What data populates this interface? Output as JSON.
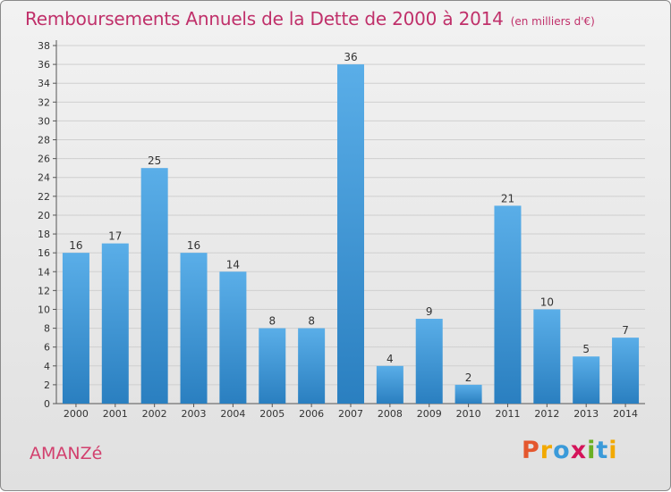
{
  "page": {
    "title": "Remboursements Annuels de la Dette de 2000 à 2014",
    "unit": "(en milliers d'€)",
    "commune": "AMANZé",
    "logo": "Proxiti"
  },
  "chart_data": {
    "type": "bar",
    "title": "Remboursements Annuels de la Dette de 2000 à 2014",
    "subtitle": "(en milliers d'€)",
    "categories": [
      "2000",
      "2001",
      "2002",
      "2003",
      "2004",
      "2005",
      "2006",
      "2007",
      "2008",
      "2009",
      "2010",
      "2011",
      "2012",
      "2013",
      "2014"
    ],
    "values": [
      16,
      17,
      25,
      16,
      14,
      8,
      8,
      36,
      4,
      9,
      2,
      21,
      10,
      5,
      7
    ],
    "ylim": [
      0,
      38
    ],
    "yticks": [
      0,
      2,
      4,
      6,
      8,
      10,
      12,
      14,
      16,
      18,
      20,
      22,
      24,
      26,
      28,
      30,
      32,
      34,
      36,
      38
    ],
    "grid": true,
    "bar_color_light": "#5aaee8",
    "bar_color_dark": "#2a7fc0",
    "grid_color": "#cfcfcf"
  }
}
